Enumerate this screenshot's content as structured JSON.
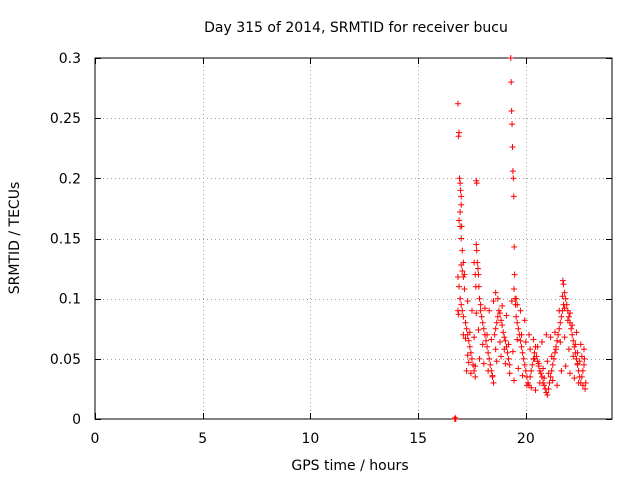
{
  "chart_data": {
    "type": "scatter",
    "title": "Day 315 of 2014, SRMTID for receiver bucu",
    "xlabel": "GPS time / hours",
    "ylabel": "SRMTID / TECUs",
    "xlim": [
      0,
      24
    ],
    "ylim": [
      0,
      0.3
    ],
    "xticks": [
      0,
      5,
      10,
      15,
      20
    ],
    "xtick_labels": [
      "0",
      "5",
      "10",
      "15",
      "20"
    ],
    "yticks": [
      0,
      0.05,
      0.1,
      0.15,
      0.2,
      0.25,
      0.3
    ],
    "ytick_labels": [
      "0",
      "0.05",
      "0.1",
      "0.15",
      "0.2",
      "0.25",
      "0.3"
    ],
    "grid": true,
    "marker": "+",
    "color": "#ff0000",
    "series": [
      {
        "name": "SRMTID bucu",
        "points": [
          [
            16.7,
            0.0
          ],
          [
            16.72,
            0.001
          ],
          [
            16.75,
            0.0
          ],
          [
            16.85,
            0.262
          ],
          [
            16.88,
            0.235
          ],
          [
            16.9,
            0.238
          ],
          [
            16.92,
            0.2
          ],
          [
            16.95,
            0.196
          ],
          [
            16.97,
            0.19
          ],
          [
            17.0,
            0.185
          ],
          [
            16.9,
            0.165
          ],
          [
            16.95,
            0.16
          ],
          [
            17.0,
            0.15
          ],
          [
            17.05,
            0.14
          ],
          [
            17.1,
            0.13
          ],
          [
            17.15,
            0.12
          ],
          [
            16.85,
            0.118
          ],
          [
            16.9,
            0.11
          ],
          [
            16.95,
            0.1
          ],
          [
            17.0,
            0.095
          ],
          [
            17.05,
            0.09
          ],
          [
            17.1,
            0.085
          ],
          [
            16.85,
            0.09
          ],
          [
            16.88,
            0.087
          ],
          [
            17.2,
            0.08
          ],
          [
            17.25,
            0.075
          ],
          [
            17.3,
            0.07
          ],
          [
            17.35,
            0.065
          ],
          [
            17.4,
            0.06
          ],
          [
            17.45,
            0.055
          ],
          [
            17.5,
            0.05
          ],
          [
            17.3,
            0.053
          ],
          [
            17.35,
            0.047
          ],
          [
            17.55,
            0.045
          ],
          [
            17.6,
            0.04
          ],
          [
            17.65,
            0.035
          ],
          [
            17.7,
            0.198
          ],
          [
            17.72,
            0.196
          ],
          [
            17.7,
            0.145
          ],
          [
            17.72,
            0.14
          ],
          [
            17.75,
            0.13
          ],
          [
            17.78,
            0.125
          ],
          [
            17.8,
            0.12
          ],
          [
            17.82,
            0.11
          ],
          [
            17.85,
            0.1
          ],
          [
            17.9,
            0.09
          ],
          [
            17.95,
            0.085
          ],
          [
            18.0,
            0.08
          ],
          [
            18.05,
            0.075
          ],
          [
            18.1,
            0.07
          ],
          [
            18.15,
            0.065
          ],
          [
            18.2,
            0.06
          ],
          [
            18.25,
            0.055
          ],
          [
            18.3,
            0.05
          ],
          [
            18.35,
            0.045
          ],
          [
            18.4,
            0.04
          ],
          [
            18.45,
            0.035
          ],
          [
            18.5,
            0.03
          ],
          [
            18.55,
            0.07
          ],
          [
            18.6,
            0.075
          ],
          [
            18.65,
            0.08
          ],
          [
            18.7,
            0.085
          ],
          [
            18.75,
            0.09
          ],
          [
            18.8,
            0.088
          ],
          [
            18.85,
            0.082
          ],
          [
            18.9,
            0.078
          ],
          [
            18.95,
            0.072
          ],
          [
            19.0,
            0.068
          ],
          [
            19.05,
            0.065
          ],
          [
            19.1,
            0.06
          ],
          [
            19.15,
            0.055
          ],
          [
            19.2,
            0.05
          ],
          [
            19.25,
            0.045
          ],
          [
            19.3,
            0.3
          ],
          [
            19.32,
            0.28
          ],
          [
            19.34,
            0.256
          ],
          [
            19.36,
            0.245
          ],
          [
            19.38,
            0.226
          ],
          [
            19.4,
            0.206
          ],
          [
            19.42,
            0.2
          ],
          [
            19.44,
            0.185
          ],
          [
            19.46,
            0.143
          ],
          [
            19.48,
            0.12
          ],
          [
            19.5,
            0.1
          ],
          [
            19.52,
            0.095
          ],
          [
            19.55,
            0.085
          ],
          [
            19.6,
            0.08
          ],
          [
            19.65,
            0.075
          ],
          [
            19.7,
            0.07
          ],
          [
            19.75,
            0.065
          ],
          [
            19.8,
            0.06
          ],
          [
            19.85,
            0.055
          ],
          [
            19.9,
            0.05
          ],
          [
            19.95,
            0.045
          ],
          [
            20.0,
            0.04
          ],
          [
            20.05,
            0.035
          ],
          [
            20.1,
            0.03
          ],
          [
            20.15,
            0.028
          ],
          [
            20.2,
            0.035
          ],
          [
            20.25,
            0.04
          ],
          [
            20.3,
            0.045
          ],
          [
            20.35,
            0.05
          ],
          [
            20.4,
            0.055
          ],
          [
            20.45,
            0.06
          ],
          [
            20.5,
            0.052
          ],
          [
            20.55,
            0.048
          ],
          [
            20.6,
            0.044
          ],
          [
            20.65,
            0.04
          ],
          [
            20.7,
            0.038
          ],
          [
            20.75,
            0.035
          ],
          [
            20.8,
            0.03
          ],
          [
            20.85,
            0.028
          ],
          [
            20.9,
            0.025
          ],
          [
            20.95,
            0.022
          ],
          [
            21.0,
            0.02
          ],
          [
            21.05,
            0.025
          ],
          [
            21.1,
            0.03
          ],
          [
            21.15,
            0.035
          ],
          [
            21.2,
            0.04
          ],
          [
            21.25,
            0.045
          ],
          [
            21.3,
            0.05
          ],
          [
            21.35,
            0.055
          ],
          [
            21.4,
            0.06
          ],
          [
            21.45,
            0.065
          ],
          [
            21.5,
            0.07
          ],
          [
            21.55,
            0.075
          ],
          [
            21.6,
            0.08
          ],
          [
            21.65,
            0.085
          ],
          [
            21.7,
            0.09
          ],
          [
            21.72,
            0.115
          ],
          [
            21.75,
            0.112
          ],
          [
            21.8,
            0.105
          ],
          [
            21.85,
            0.1
          ],
          [
            21.9,
            0.095
          ],
          [
            21.95,
            0.09
          ],
          [
            22.0,
            0.085
          ],
          [
            22.05,
            0.08
          ],
          [
            22.1,
            0.075
          ],
          [
            22.15,
            0.07
          ],
          [
            22.2,
            0.065
          ],
          [
            22.25,
            0.06
          ],
          [
            22.3,
            0.055
          ],
          [
            22.35,
            0.05
          ],
          [
            22.4,
            0.045
          ],
          [
            22.45,
            0.04
          ],
          [
            22.5,
            0.035
          ],
          [
            22.55,
            0.03
          ],
          [
            22.6,
            0.035
          ],
          [
            22.65,
            0.04
          ],
          [
            22.7,
            0.045
          ],
          [
            22.72,
            0.05
          ],
          [
            22.75,
            0.025
          ],
          [
            22.78,
            0.03
          ],
          [
            22.6,
            0.052
          ],
          [
            22.5,
            0.048
          ],
          [
            22.4,
            0.055
          ],
          [
            22.3,
            0.062
          ],
          [
            17.1,
            0.07
          ],
          [
            17.2,
            0.067
          ],
          [
            17.4,
            0.072
          ],
          [
            17.6,
            0.068
          ],
          [
            17.8,
            0.074
          ],
          [
            18.0,
            0.062
          ],
          [
            18.2,
            0.07
          ],
          [
            18.4,
            0.066
          ],
          [
            18.6,
            0.058
          ],
          [
            18.8,
            0.064
          ],
          [
            19.0,
            0.058
          ],
          [
            19.2,
            0.062
          ],
          [
            19.4,
            0.056
          ],
          [
            19.6,
            0.066
          ],
          [
            19.8,
            0.07
          ],
          [
            20.0,
            0.064
          ],
          [
            20.2,
            0.058
          ],
          [
            20.4,
            0.05
          ],
          [
            20.6,
            0.046
          ],
          [
            20.8,
            0.042
          ],
          [
            21.0,
            0.048
          ],
          [
            21.2,
            0.052
          ],
          [
            21.4,
            0.058
          ],
          [
            21.6,
            0.064
          ],
          [
            21.8,
            0.068
          ],
          [
            22.0,
            0.058
          ],
          [
            22.2,
            0.052
          ],
          [
            22.4,
            0.046
          ],
          [
            17.0,
            0.128
          ],
          [
            17.05,
            0.123
          ],
          [
            17.1,
            0.118
          ],
          [
            17.15,
            0.108
          ],
          [
            17.3,
            0.098
          ],
          [
            17.5,
            0.09
          ],
          [
            17.7,
            0.088
          ],
          [
            17.9,
            0.095
          ],
          [
            18.1,
            0.092
          ],
          [
            18.3,
            0.09
          ],
          [
            18.5,
            0.098
          ],
          [
            18.7,
            0.1
          ],
          [
            18.9,
            0.094
          ],
          [
            19.1,
            0.086
          ],
          [
            19.35,
            0.098
          ],
          [
            19.55,
            0.1
          ],
          [
            19.75,
            0.09
          ],
          [
            19.95,
            0.082
          ],
          [
            20.15,
            0.07
          ],
          [
            20.35,
            0.066
          ],
          [
            20.55,
            0.06
          ],
          [
            20.75,
            0.064
          ],
          [
            20.95,
            0.07
          ],
          [
            21.15,
            0.068
          ],
          [
            21.35,
            0.072
          ],
          [
            21.55,
            0.09
          ],
          [
            21.75,
            0.095
          ],
          [
            21.95,
            0.082
          ],
          [
            22.15,
            0.078
          ],
          [
            22.35,
            0.072
          ],
          [
            22.55,
            0.062
          ],
          [
            22.7,
            0.058
          ],
          [
            17.25,
            0.04
          ],
          [
            17.45,
            0.038
          ],
          [
            17.65,
            0.044
          ],
          [
            17.85,
            0.05
          ],
          [
            18.05,
            0.046
          ],
          [
            18.25,
            0.04
          ],
          [
            18.45,
            0.036
          ],
          [
            18.65,
            0.048
          ],
          [
            18.85,
            0.052
          ],
          [
            19.05,
            0.046
          ],
          [
            19.25,
            0.038
          ],
          [
            19.45,
            0.032
          ],
          [
            19.65,
            0.042
          ],
          [
            19.85,
            0.036
          ],
          [
            20.05,
            0.028
          ],
          [
            20.25,
            0.026
          ],
          [
            20.45,
            0.024
          ],
          [
            20.65,
            0.03
          ],
          [
            20.85,
            0.034
          ],
          [
            21.05,
            0.038
          ],
          [
            21.25,
            0.032
          ],
          [
            21.45,
            0.028
          ],
          [
            21.65,
            0.04
          ],
          [
            21.85,
            0.044
          ],
          [
            22.05,
            0.038
          ],
          [
            22.25,
            0.034
          ],
          [
            22.45,
            0.03
          ],
          [
            22.65,
            0.028
          ],
          [
            16.95,
            0.172
          ],
          [
            17.0,
            0.178
          ],
          [
            17.02,
            0.16
          ],
          [
            17.6,
            0.13
          ],
          [
            17.65,
            0.12
          ],
          [
            17.68,
            0.11
          ],
          [
            18.6,
            0.105
          ],
          [
            19.45,
            0.108
          ],
          [
            19.6,
            0.095
          ],
          [
            21.7,
            0.102
          ],
          [
            21.8,
            0.092
          ],
          [
            22.05,
            0.088
          ]
        ]
      }
    ]
  }
}
